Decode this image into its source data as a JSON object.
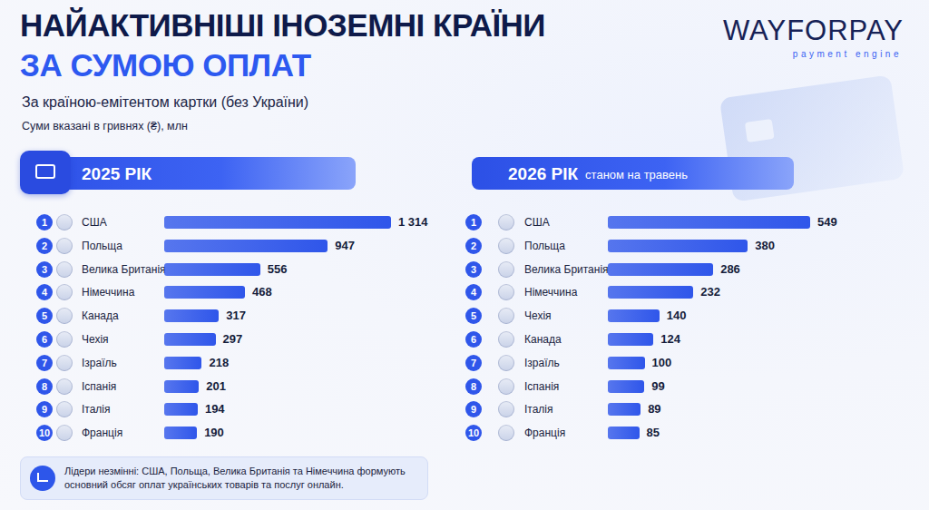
{
  "header": {
    "title": "НАЙАКТИВНІШІ ІНОЗЕМНІ КРАЇНИ",
    "title_line2": "ЗА СУМОЮ ОПЛАТ",
    "subtitle": "За країною-емітентом картки (без України)",
    "units": "Суми вказані в гривнях (₴), млн",
    "logo": "WAYFORPAY",
    "logo_tagline": "payment engine"
  },
  "chart_data": [
    {
      "type": "bar",
      "orientation": "horizontal",
      "title": "2025 РІК",
      "ranks": [
        1,
        2,
        3,
        4,
        5,
        6,
        7,
        8,
        9,
        10
      ],
      "categories": [
        "США",
        "Польща",
        "Велика Британія",
        "Німеччина",
        "Канада",
        "Чехія",
        "Ізраїль",
        "Іспанія",
        "Італія",
        "Франція"
      ],
      "values": [
        1314,
        947,
        556,
        468,
        317,
        297,
        218,
        201,
        194,
        190
      ],
      "value_labels": [
        "1 314",
        "947",
        "556",
        "468",
        "317",
        "297",
        "218",
        "201",
        "194",
        "190"
      ],
      "color": "#2f56ea",
      "xlim": [
        0,
        1314
      ],
      "tick_labels": false,
      "grid": false,
      "data_labels": true
    },
    {
      "type": "bar",
      "orientation": "horizontal",
      "title": "2026 РІК",
      "subtitle": "станом на травень",
      "ranks": [
        1,
        2,
        3,
        4,
        5,
        6,
        7,
        8,
        9,
        10
      ],
      "categories": [
        "США",
        "Польща",
        "Велика Британія",
        "Німеччина",
        "Чехія",
        "Канада",
        "Ізраїль",
        "Іспанія",
        "Італія",
        "Франція"
      ],
      "values": [
        549,
        380,
        286,
        232,
        140,
        124,
        100,
        99,
        89,
        85
      ],
      "color": "#2f56ea",
      "xlim": [
        0,
        549
      ],
      "tick_labels": false,
      "grid": false,
      "data_labels": true
    }
  ],
  "footer": {
    "note": "Лідери незмінні: США, Польща, Велика Британія та Німеччина формують основний обсяг оплат українських товарів та послуг онлайн."
  }
}
